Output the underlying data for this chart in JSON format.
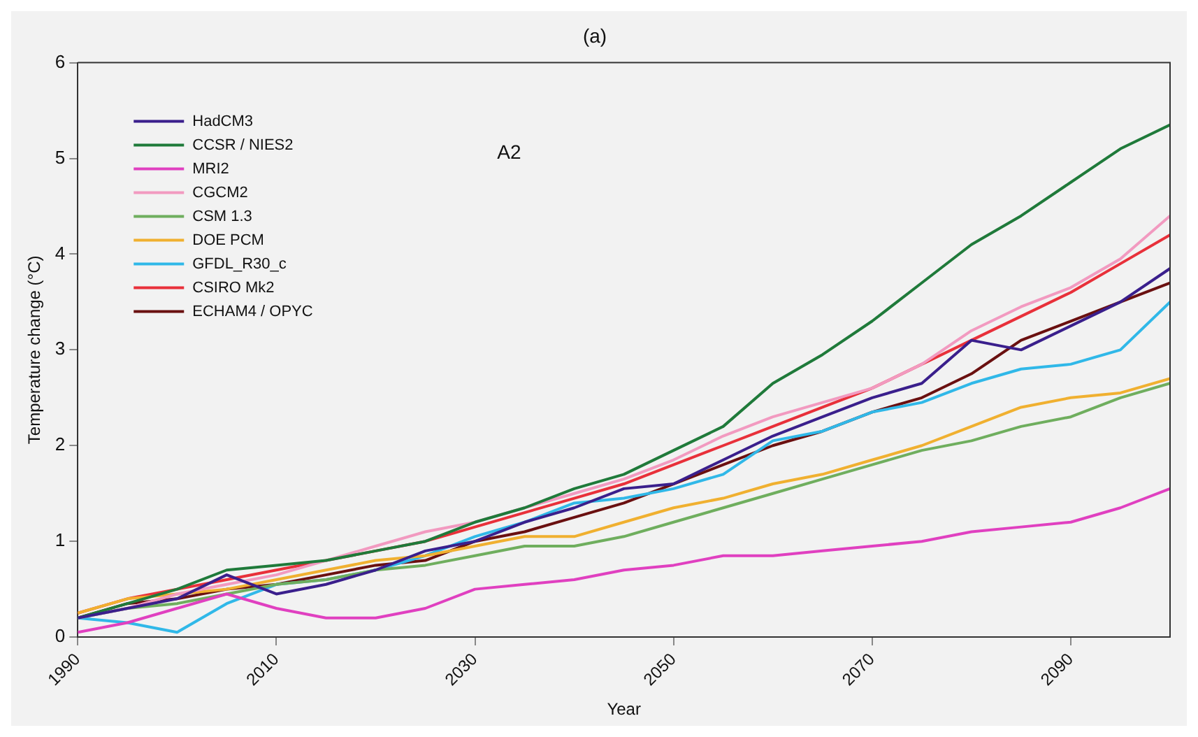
{
  "chart_data": {
    "type": "line",
    "title": "(a)",
    "xlabel": "Year",
    "ylabel": "Temperature change (°C)",
    "annotations": [
      "A2"
    ],
    "x": [
      1990,
      1995,
      2000,
      2005,
      2010,
      2015,
      2020,
      2025,
      2030,
      2035,
      2040,
      2045,
      2050,
      2055,
      2060,
      2065,
      2070,
      2075,
      2080,
      2085,
      2090,
      2095,
      2100
    ],
    "series": [
      {
        "name": "HadCM3",
        "color": "#3a1f8c",
        "values": [
          0.2,
          0.3,
          0.4,
          0.65,
          0.45,
          0.55,
          0.7,
          0.9,
          1.0,
          1.2,
          1.35,
          1.55,
          1.6,
          1.85,
          2.1,
          2.3,
          2.5,
          2.65,
          3.1,
          3.0,
          3.25,
          3.5,
          3.85
        ]
      },
      {
        "name": "CCSR / NIES2",
        "color": "#1f7a3a",
        "values": [
          0.2,
          0.35,
          0.5,
          0.7,
          0.75,
          0.8,
          0.9,
          1.0,
          1.2,
          1.35,
          1.55,
          1.7,
          1.95,
          2.2,
          2.65,
          2.95,
          3.3,
          3.7,
          4.1,
          4.4,
          4.75,
          5.1,
          5.35
        ]
      },
      {
        "name": "MRI2",
        "color": "#e040c0",
        "values": [
          0.05,
          0.15,
          0.3,
          0.45,
          0.3,
          0.2,
          0.2,
          0.3,
          0.5,
          0.55,
          0.6,
          0.7,
          0.75,
          0.85,
          0.85,
          0.9,
          0.95,
          1.0,
          1.1,
          1.15,
          1.2,
          1.35,
          1.55
        ]
      },
      {
        "name": "CGCM2",
        "color": "#f29ac0",
        "values": [
          0.2,
          0.3,
          0.45,
          0.55,
          0.65,
          0.8,
          0.95,
          1.1,
          1.2,
          1.35,
          1.5,
          1.65,
          1.85,
          2.1,
          2.3,
          2.45,
          2.6,
          2.85,
          3.2,
          3.45,
          3.65,
          3.95,
          4.4
        ]
      },
      {
        "name": "CSM 1.3",
        "color": "#6fae5e",
        "values": [
          0.2,
          0.3,
          0.35,
          0.45,
          0.55,
          0.6,
          0.7,
          0.75,
          0.85,
          0.95,
          0.95,
          1.05,
          1.2,
          1.35,
          1.5,
          1.65,
          1.8,
          1.95,
          2.05,
          2.2,
          2.3,
          2.5,
          2.65
        ]
      },
      {
        "name": "DOE PCM",
        "color": "#f0b030",
        "values": [
          0.25,
          0.4,
          0.45,
          0.5,
          0.6,
          0.7,
          0.8,
          0.85,
          0.95,
          1.05,
          1.05,
          1.2,
          1.35,
          1.45,
          1.6,
          1.7,
          1.85,
          2.0,
          2.2,
          2.4,
          2.5,
          2.55,
          2.7
        ]
      },
      {
        "name": "GFDL_R30_c",
        "color": "#30b8e8",
        "values": [
          0.2,
          0.15,
          0.05,
          0.35,
          0.55,
          0.6,
          0.7,
          0.85,
          1.05,
          1.2,
          1.4,
          1.45,
          1.55,
          1.7,
          2.05,
          2.15,
          2.35,
          2.45,
          2.65,
          2.8,
          2.85,
          3.0,
          3.5
        ]
      },
      {
        "name": "CSIRO Mk2",
        "color": "#e8303a",
        "values": [
          0.25,
          0.4,
          0.5,
          0.6,
          0.7,
          0.8,
          0.9,
          1.0,
          1.15,
          1.3,
          1.45,
          1.6,
          1.8,
          2.0,
          2.2,
          2.4,
          2.6,
          2.85,
          3.1,
          3.35,
          3.6,
          3.9,
          4.2
        ]
      },
      {
        "name": "ECHAM4 / OPYC",
        "color": "#6a1010",
        "values": [
          0.2,
          0.35,
          0.4,
          0.5,
          0.55,
          0.65,
          0.75,
          0.8,
          1.0,
          1.1,
          1.25,
          1.4,
          1.6,
          1.8,
          2.0,
          2.15,
          2.35,
          2.5,
          2.75,
          3.1,
          3.3,
          3.5,
          3.7
        ]
      }
    ],
    "xlim": [
      1990,
      2100
    ],
    "xticks": [
      1990,
      2010,
      2030,
      2050,
      2070,
      2090
    ],
    "ylim": [
      0,
      6
    ],
    "yticks": [
      0,
      1,
      2,
      3,
      4,
      5,
      6
    ],
    "grid": false,
    "legend": "top left",
    "marker": "none",
    "line_style": "solid"
  }
}
